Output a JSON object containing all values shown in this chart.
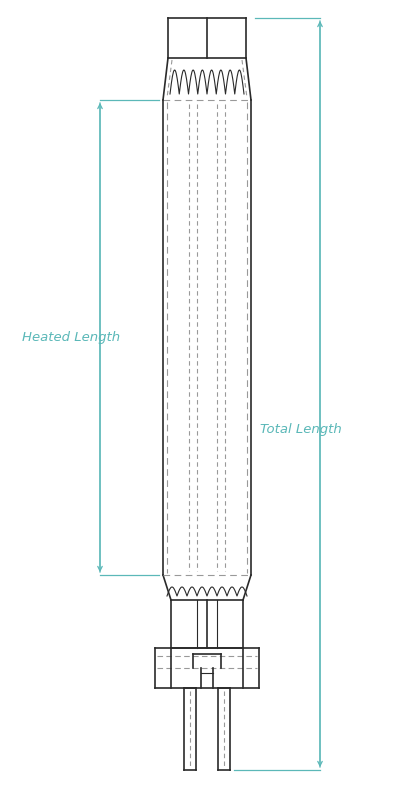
{
  "bg_color": "#ffffff",
  "line_color": "#2a2a2a",
  "dim_color": "#5bb8b8",
  "dash_color": "#999999",
  "label_heated": "Heated Length",
  "label_total": "Total Length",
  "figsize": [
    4.14,
    8.0
  ],
  "dpi": 100
}
